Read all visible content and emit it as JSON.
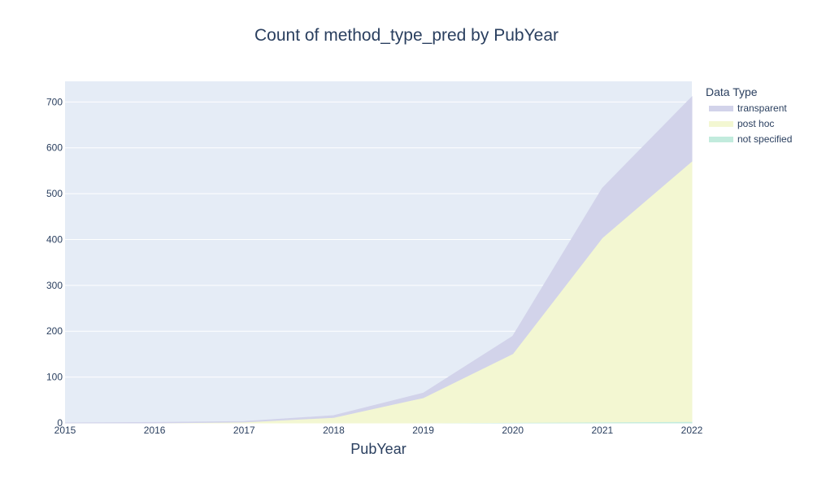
{
  "chart_data": {
    "type": "area",
    "stacked": true,
    "title": "Count of method_type_pred by PubYear",
    "xlabel": "PubYear",
    "ylabel": "",
    "x": [
      2015,
      2016,
      2017,
      2018,
      2019,
      2020,
      2021,
      2022
    ],
    "xlim": [
      2015,
      2022
    ],
    "ylim": [
      0,
      745
    ],
    "xticks": [
      "2015",
      "2016",
      "2017",
      "2018",
      "2019",
      "2020",
      "2021",
      "2022"
    ],
    "yticks": [
      0,
      100,
      200,
      300,
      400,
      500,
      600,
      700
    ],
    "grid": true,
    "legend_title": "Data Type",
    "legend_position": "right",
    "series": [
      {
        "name": "not specified",
        "color": "#c2ebdd",
        "values": [
          0,
          0,
          0,
          0,
          0,
          1,
          2,
          3
        ]
      },
      {
        "name": "post hoc",
        "color": "#f3f7d2",
        "values": [
          0,
          0,
          2,
          12,
          55,
          150,
          402,
          568
        ]
      },
      {
        "name": "transparent",
        "color": "#d2d3ea",
        "values": [
          0,
          1,
          1,
          4,
          10,
          38,
          108,
          140
        ]
      }
    ],
    "legend_order": [
      "transparent",
      "post hoc",
      "not specified"
    ]
  },
  "colors": {
    "plot_background": "#e5ecf6",
    "grid": "#ffffff",
    "text": "#2a3f5f"
  }
}
